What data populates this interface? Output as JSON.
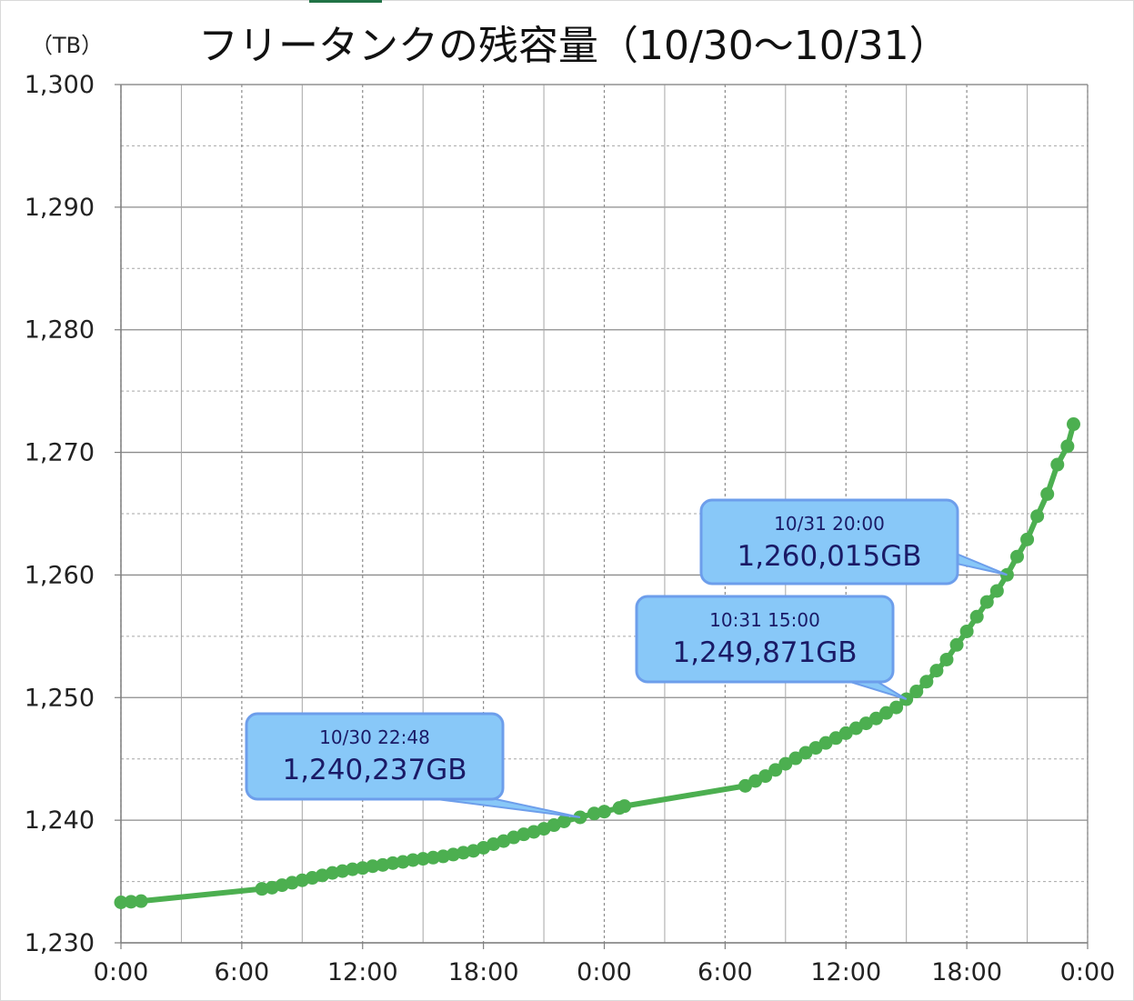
{
  "chart_data": {
    "type": "line",
    "title": "フリータンクの残容量（10/30〜10/31）",
    "ylabel": "（TB）",
    "xlabel": "",
    "ylim": [
      1230,
      1300
    ],
    "y_ticks": [
      "1,230",
      "1,240",
      "1,250",
      "1,260",
      "1,270",
      "1,280",
      "1,290",
      "1,300"
    ],
    "xlim_hours": [
      0,
      48
    ],
    "x_ticks": [
      "0:00",
      "6:00",
      "12:00",
      "18:00",
      "0:00",
      "6:00",
      "12:00",
      "18:00",
      "0:00"
    ],
    "x_unit": "hours since 10/30 0:00",
    "grid": true,
    "line_color": "#4caf50",
    "callout_color": "#88c8f8",
    "series": [
      {
        "values": [
          [
            0.0,
            1233.3
          ],
          [
            0.5,
            1233.35
          ],
          [
            1.0,
            1233.4
          ],
          [
            7.0,
            1234.4
          ],
          [
            7.5,
            1234.5
          ],
          [
            8.0,
            1234.7
          ],
          [
            8.5,
            1234.9
          ],
          [
            9.0,
            1235.1
          ],
          [
            9.5,
            1235.3
          ],
          [
            10.0,
            1235.5
          ],
          [
            10.5,
            1235.7
          ],
          [
            11.0,
            1235.85
          ],
          [
            11.5,
            1236.0
          ],
          [
            12.0,
            1236.1
          ],
          [
            12.5,
            1236.25
          ],
          [
            13.0,
            1236.35
          ],
          [
            13.5,
            1236.5
          ],
          [
            14.0,
            1236.6
          ],
          [
            14.5,
            1236.75
          ],
          [
            15.0,
            1236.85
          ],
          [
            15.5,
            1236.95
          ],
          [
            16.0,
            1237.05
          ],
          [
            16.5,
            1237.2
          ],
          [
            17.0,
            1237.35
          ],
          [
            17.5,
            1237.5
          ],
          [
            18.0,
            1237.75
          ],
          [
            18.5,
            1238.05
          ],
          [
            19.0,
            1238.3
          ],
          [
            19.5,
            1238.6
          ],
          [
            20.0,
            1238.85
          ],
          [
            20.5,
            1239.05
          ],
          [
            21.0,
            1239.3
          ],
          [
            21.5,
            1239.6
          ],
          [
            22.0,
            1239.9
          ],
          [
            22.8,
            1240.237
          ],
          [
            23.5,
            1240.55
          ],
          [
            24.0,
            1240.7
          ],
          [
            24.75,
            1241.0
          ],
          [
            25.0,
            1241.15
          ],
          [
            31.0,
            1242.8
          ],
          [
            31.5,
            1243.2
          ],
          [
            32.0,
            1243.6
          ],
          [
            32.5,
            1244.1
          ],
          [
            33.0,
            1244.6
          ],
          [
            33.5,
            1245.05
          ],
          [
            34.0,
            1245.5
          ],
          [
            34.5,
            1245.9
          ],
          [
            35.0,
            1246.3
          ],
          [
            35.5,
            1246.7
          ],
          [
            36.0,
            1247.1
          ],
          [
            36.5,
            1247.5
          ],
          [
            37.0,
            1247.9
          ],
          [
            37.5,
            1248.3
          ],
          [
            38.0,
            1248.75
          ],
          [
            38.5,
            1249.2
          ],
          [
            39.0,
            1249.871
          ],
          [
            39.5,
            1250.5
          ],
          [
            40.0,
            1251.3
          ],
          [
            40.5,
            1252.2
          ],
          [
            41.0,
            1253.1
          ],
          [
            41.5,
            1254.3
          ],
          [
            42.0,
            1255.4
          ],
          [
            42.5,
            1256.6
          ],
          [
            43.0,
            1257.8
          ],
          [
            43.5,
            1258.7
          ],
          [
            44.0,
            1260.015
          ],
          [
            44.5,
            1261.5
          ],
          [
            45.0,
            1262.9
          ],
          [
            45.5,
            1264.8
          ],
          [
            46.0,
            1266.6
          ],
          [
            46.5,
            1269.0
          ],
          [
            47.0,
            1270.5
          ],
          [
            47.3,
            1272.3
          ]
        ]
      }
    ],
    "annotations": [
      {
        "time": "10/30 22:48",
        "value_text": "1,240,237GB",
        "x": 22.8,
        "y": 1240.237
      },
      {
        "time": "10:31 15:00",
        "value_text": "1,249,871GB",
        "x": 39.0,
        "y": 1249.871
      },
      {
        "time": "10/31 20:00",
        "value_text": "1,260,015GB",
        "x": 44.0,
        "y": 1260.015
      }
    ]
  }
}
